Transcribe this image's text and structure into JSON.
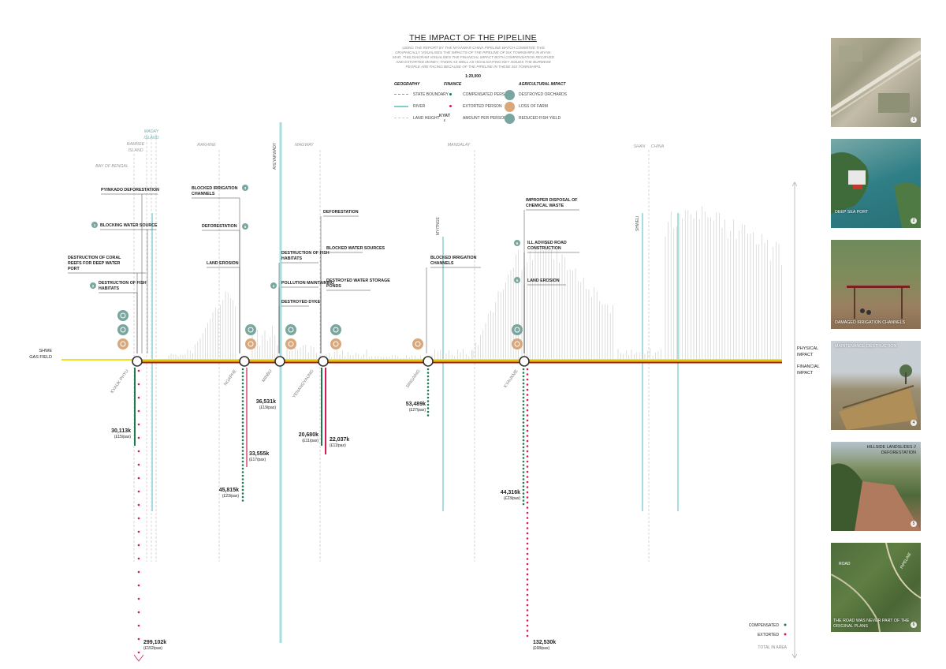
{
  "header": {
    "title": "THE IMPACT OF THE PIPELINE",
    "intro": "USING THE REPORT BY THE MYANMAR CHINA PIPELINE WATCH COMMITEE THIS GRAPHICALLY VISUALISES THE IMPACTS OF THE PIPELINE OF SIX TOWNSHIPS IN MYAN- MAR. THIS DIAGRAM VISUALISES THE FINANCIAL IMPACT BOTH COMPENSATION RECIEVED AND EXTORTED MONEY, TAKEN AS WELL AS HIGHLIGHTING KEY ISSUES THE BURMESE PEOPLE ARE FACING BECAUSE OF THE PIPELINE IN THESE SIX TOWNSHIPS.",
    "scale": "1:20,000"
  },
  "legend": {
    "geography": {
      "heading": "GEOGRAPHY",
      "items": [
        "STATE BOUNDARY",
        "RIVER",
        "LAND HEIGHT"
      ]
    },
    "finance": {
      "heading": "FINANCE",
      "items": [
        "COMPENSATED PERSON",
        "EXTORTED PERSON",
        "AMOUNT PER PERSON"
      ],
      "kyat_label": "KYAT",
      "pound_label": "£"
    },
    "agricultural": {
      "heading": "AGRICULTURAL IMPACT",
      "items": [
        "DESTROYED ORCHARDS",
        "LOSS OF FARM",
        "REDUCED FISH YIELD"
      ]
    }
  },
  "colors": {
    "compensated": "#1e7a4f",
    "extorted": "#d81b55",
    "river": "#a8dde0",
    "pipeline_yellow": "#f0e020",
    "pipeline_orange": "#e08820",
    "pipeline_red": "#b01818",
    "teal_icon": "#7aa6a0",
    "tan_icon": "#d9a77a"
  },
  "diagram": {
    "gas_field": [
      "SHWE",
      "GAS FIELD"
    ],
    "right_labels": {
      "physical": [
        "PHYSICAL",
        "IMPACT"
      ],
      "financial": [
        "FINANCIAL",
        "IMPACT"
      ]
    },
    "regions": [
      {
        "lines": [
          "MADAY",
          "ISLAND"
        ],
        "col": "teal"
      },
      {
        "lines": [
          "RAMREE",
          "ISLAND"
        ],
        "col": "grey"
      },
      {
        "lines": [
          "BAY OF BENGAL"
        ],
        "col": "grey"
      },
      {
        "lines": [
          "RAKHINE"
        ],
        "col": "grey"
      },
      {
        "lines": [
          "MAGWAY"
        ],
        "col": "grey"
      },
      {
        "lines": [
          "MANDALAY"
        ],
        "col": "grey"
      },
      {
        "lines": [
          "SHAN"
        ],
        "col": "grey"
      },
      {
        "lines": [
          "CHINA"
        ],
        "col": "grey"
      }
    ],
    "rivers": [
      "AYEYARWADY",
      "MYITNGE",
      "SHWELI"
    ],
    "townships": [
      "KYAUK PHYU",
      "NGAPHE",
      "MINBU",
      "YENANGYAUNG",
      "SINGAING",
      "KYAUKME"
    ],
    "callouts": [
      {
        "text": "PYINKADO DEFORESTATION",
        "num": ""
      },
      {
        "text": "BLOCKING WATER SOURCE",
        "num": "1"
      },
      {
        "text": "DESTRUCTION OF CORAL REEFS FOR DEEP WATER PORT",
        "num": ""
      },
      {
        "text": "DESTRUCTION OF FISH HABITATS",
        "num": "2"
      },
      {
        "text": "BLOCKED IRRIGATION CHANNELS",
        "num": "3"
      },
      {
        "text": "DEFORESTATION",
        "num": "5"
      },
      {
        "text": "LAND EROSION",
        "num": ""
      },
      {
        "text": "DESTRUCTION OF FISH HABITATS",
        "num": ""
      },
      {
        "text": "POLLUTION MAINTAINING",
        "num": "4"
      },
      {
        "text": "DESTROYED DYKE",
        "num": ""
      },
      {
        "text": "DEFORESTATION",
        "num": ""
      },
      {
        "text": "BLOCKED WATER SOURCES",
        "num": ""
      },
      {
        "text": "DESTROYED WATER STORAGE PONDS",
        "num": ""
      },
      {
        "text": "BLOCKED IRRIGATION CHANNELS",
        "num": ""
      },
      {
        "text": "IMPROPER DISPOSAL OF CHEMICAL WASTE",
        "num": ""
      },
      {
        "text": "ILL ADVISED ROAD CONSTRUCTION",
        "num": "6"
      },
      {
        "text": "LAND EROSION",
        "num": "5"
      }
    ],
    "finance_labels": [
      {
        "amount": "30,113k",
        "per": "(£15/pax)"
      },
      {
        "amount": "299,102k",
        "per": "(£152/pax)"
      },
      {
        "amount": "36,531k",
        "per": "(£19/pax)"
      },
      {
        "amount": "33,555k",
        "per": "(£17/pax)"
      },
      {
        "amount": "45,815k",
        "per": "(£23/pax)"
      },
      {
        "amount": "20,680k",
        "per": "(£11/pax)"
      },
      {
        "amount": "22,037k",
        "per": "(£11/pax)"
      },
      {
        "amount": "53,489k",
        "per": "(£27/pax)"
      },
      {
        "amount": "44,316k",
        "per": "(£23/pax)"
      },
      {
        "amount": "132,530k",
        "per": "(£68/pax)"
      }
    ],
    "bottom_legend": {
      "compensated": "COMPENSATED",
      "extorted": "EXTORTED",
      "total": "TOTAL IN AREA"
    }
  },
  "photos": [
    {
      "caption": "",
      "num": "1",
      "icon": "satellite-pipeline"
    },
    {
      "caption": "DEEP SEA PORT",
      "num": "2",
      "icon": "port-aerial"
    },
    {
      "caption": "DAMAGED IRRIGATION CHANNELS",
      "num": "3",
      "icon": "irrigation-photo"
    },
    {
      "caption": "MAINTENANCE DESTRUCTION",
      "num": "4",
      "icon": "construction-photo"
    },
    {
      "caption": "HILLSIDE LANDSLIDES // DEFORESTATION",
      "num": "5",
      "icon": "landslide-photo"
    },
    {
      "caption": "THE ROAD WAS NEVER PART OF THE ORIGINAL PLANS",
      "num": "6",
      "icon": "road-aerial",
      "road_label": "ROAD",
      "pipeline_label": "PIPELINE"
    }
  ]
}
